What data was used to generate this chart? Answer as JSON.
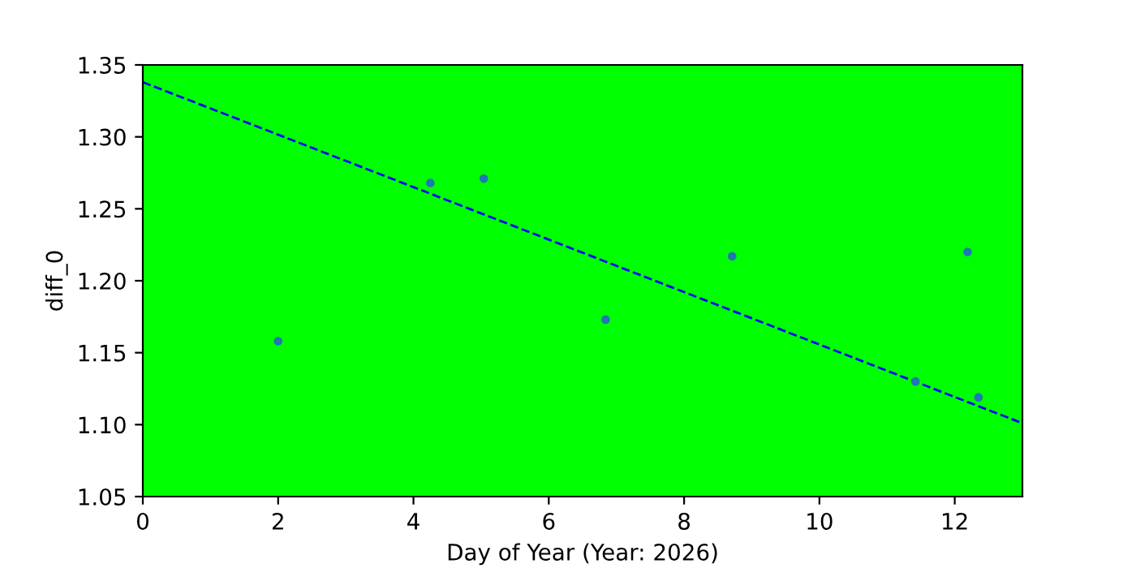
{
  "chart_data": {
    "type": "scatter",
    "xlabel": "Day of Year (Year: 2026)",
    "ylabel": "diff_0",
    "series": [
      {
        "color": "#1f77b4",
        "x": [
          2.0,
          4.25,
          5.04,
          6.84,
          8.71,
          11.42,
          12.19,
          12.35
        ],
        "values": [
          1.158,
          1.268,
          1.271,
          1.173,
          1.217,
          1.13,
          1.22,
          1.119
        ],
        "marker": "circle"
      },
      {
        "type": "line",
        "color": "#0000ff",
        "x": [
          0,
          13
        ],
        "values": [
          1.338,
          1.101
        ],
        "line_style": "dashed",
        "marker": "none"
      }
    ],
    "xlim": [
      0,
      13
    ],
    "xticks": [
      0,
      2,
      4,
      6,
      8,
      10,
      12
    ],
    "ylim": [
      1.05,
      1.35
    ],
    "yticks": [
      1.05,
      {
        "value": 1.1,
        "label": "1.10"
      },
      1.15,
      {
        "value": 1.2,
        "label": "1.20"
      },
      1.25,
      {
        "value": 1.3,
        "label": "1.30"
      },
      1.35
    ],
    "grid": false,
    "legend": false
  }
}
